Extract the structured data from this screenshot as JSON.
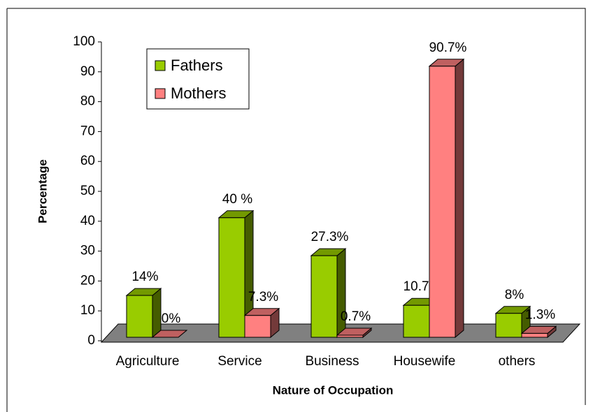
{
  "chart_data": {
    "type": "bar3d",
    "x_label": "Nature of Occupation",
    "y_label": "Percentage",
    "categories": [
      "Agriculture",
      "Service",
      "Business",
      "Housewife",
      "others"
    ],
    "series": [
      {
        "name": "Fathers",
        "color": "#99cc00",
        "values": [
          14,
          40,
          27.3,
          10.7,
          8
        ],
        "value_labels": [
          "14%",
          "40 %",
          "27.3%",
          "10.7%",
          "8%"
        ]
      },
      {
        "name": "Mothers",
        "color": "#ff8080",
        "values": [
          0,
          7.3,
          0.7,
          90.7,
          1.3
        ],
        "value_labels": [
          "0%",
          "7.3%",
          "0.7%",
          "90.7%",
          "1.3%"
        ]
      }
    ],
    "ylim": [
      0,
      100
    ],
    "yticks": [
      0,
      10,
      20,
      30,
      40,
      50,
      60,
      70,
      80,
      90,
      100
    ],
    "legend": "upper left"
  }
}
